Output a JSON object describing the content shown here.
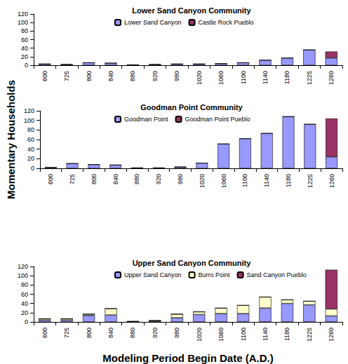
{
  "chart_data": [
    {
      "type": "bar",
      "title": "Lower Sand Canyon Community",
      "stacked": true,
      "legend": "top",
      "categories": [
        "600",
        "725",
        "800",
        "840",
        "880",
        "920",
        "980",
        "1020",
        "1060",
        "1100",
        "1140",
        "1180",
        "1225",
        "1260"
      ],
      "series": [
        {
          "name": "Lower Sand Canyon",
          "color": "#9999ff",
          "values": [
            3,
            2,
            6,
            5,
            1,
            2,
            3,
            3,
            4,
            6,
            12,
            17,
            36,
            17
          ]
        },
        {
          "name": "Castle Rock Pueblo",
          "color": "#993366",
          "values": [
            0,
            0,
            0,
            0,
            0,
            0,
            0,
            0,
            0,
            0,
            0,
            0,
            0,
            15
          ]
        }
      ],
      "ylim": [
        0,
        120
      ],
      "yticks": [
        0,
        20,
        40,
        60,
        80,
        100,
        120
      ],
      "grid": false
    },
    {
      "type": "bar",
      "title": "Goodman Point Community",
      "stacked": true,
      "legend": "top",
      "ylabel": "Momentary Households",
      "categories": [
        "600",
        "725",
        "800",
        "840",
        "880",
        "920",
        "980",
        "1020",
        "1060",
        "1100",
        "1140",
        "1180",
        "1225",
        "1260"
      ],
      "series": [
        {
          "name": "Goodman Point",
          "color": "#9999ff",
          "values": [
            2,
            10,
            8,
            7,
            1,
            1,
            3,
            11,
            51,
            62,
            73,
            108,
            92,
            24
          ]
        },
        {
          "name": "Goodman Point Pueblo",
          "color": "#993366",
          "values": [
            0,
            0,
            0,
            0,
            0,
            0,
            0,
            0,
            0,
            0,
            0,
            0,
            0,
            80
          ]
        }
      ],
      "ylim": [
        0,
        120
      ],
      "yticks": [
        0,
        20,
        40,
        60,
        80,
        100,
        120
      ],
      "grid": false
    },
    {
      "type": "bar",
      "title": "Upper Sand Canyon Community",
      "stacked": true,
      "legend": "top",
      "xlabel": "Modeling Period Begin Date (A.D.)",
      "categories": [
        "600",
        "725",
        "800",
        "840",
        "880",
        "920",
        "980",
        "1020",
        "1060",
        "1100",
        "1140",
        "1180",
        "1225",
        "1260"
      ],
      "series": [
        {
          "name": "Upper Sand Canyon",
          "color": "#9999ff",
          "values": [
            4,
            4,
            14,
            15,
            1,
            2,
            9,
            16,
            18,
            18,
            30,
            40,
            37,
            13
          ]
        },
        {
          "name": "Burro Point",
          "color": "#ffffcc",
          "values": [
            3,
            3,
            3,
            14,
            0,
            1,
            8,
            6,
            12,
            18,
            24,
            8,
            8,
            15
          ]
        },
        {
          "name": "Sand Canyon Pueblo",
          "color": "#993366",
          "values": [
            0,
            0,
            0,
            0,
            0,
            0,
            0,
            0,
            0,
            0,
            0,
            0,
            0,
            85
          ]
        }
      ],
      "ylim": [
        0,
        120
      ],
      "yticks": [
        0,
        20,
        40,
        60,
        80,
        100,
        120
      ],
      "grid": false
    }
  ]
}
